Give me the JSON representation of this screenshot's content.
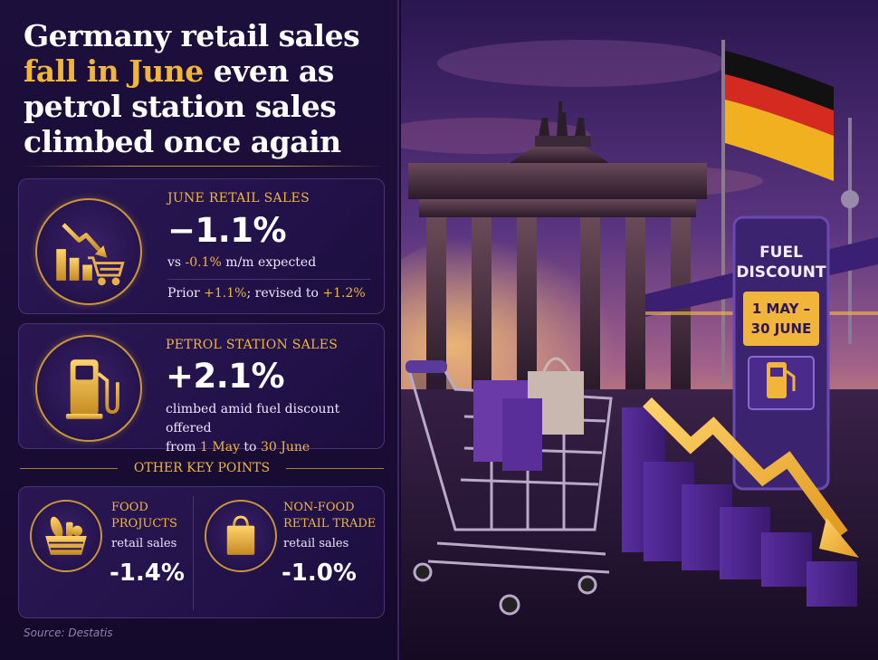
{
  "headline": {
    "line1": "Germany retail sales",
    "highlight": "fall in June",
    "line2_rest": " even as",
    "line3": "petrol station sales",
    "line4": "climbed once again"
  },
  "june_retail": {
    "label": "JUNE RETAIL SALES",
    "value": "−1.1%",
    "vs_text": "vs ",
    "expected_value": "-0.1%",
    "expected_text": " m/m expected",
    "prior_text": "Prior ",
    "prior_value": "+1.1%",
    "revised_text": "; revised to ",
    "revised_value": "+1.2%"
  },
  "petrol": {
    "label": "PETROL STATION SALES",
    "value": "+2.1%",
    "desc1": "climbed amid fuel discount offered",
    "desc2_from": "from ",
    "desc2_start": "1 May",
    "desc2_to": " to ",
    "desc2_end": "30 June"
  },
  "other_key_points": {
    "title": "OTHER KEY POINTS",
    "food": {
      "label_line1": "FOOD",
      "label_line2": "PROJUCTS",
      "sub": "retail sales",
      "value": "-1.4%"
    },
    "nonfood": {
      "label_line1": "NON-FOOD",
      "label_line2": "RETAIL TRADE",
      "sub": "retail sales",
      "value": "-1.0%"
    }
  },
  "source": "Source: Destatis",
  "fuel_sign": {
    "title1": "FUEL",
    "title2": "DISCOUNT",
    "date1": "1 MAY –",
    "date2": "30 JUNE"
  },
  "icons": [
    "down-trend-chart-icon",
    "shopping-cart-icon",
    "fuel-pump-icon",
    "food-basket-icon",
    "shopping-bag-icon"
  ],
  "colors": {
    "gold": "#f1b53a",
    "panel": "#1d0f3c",
    "purple": "#5a2ea0"
  }
}
